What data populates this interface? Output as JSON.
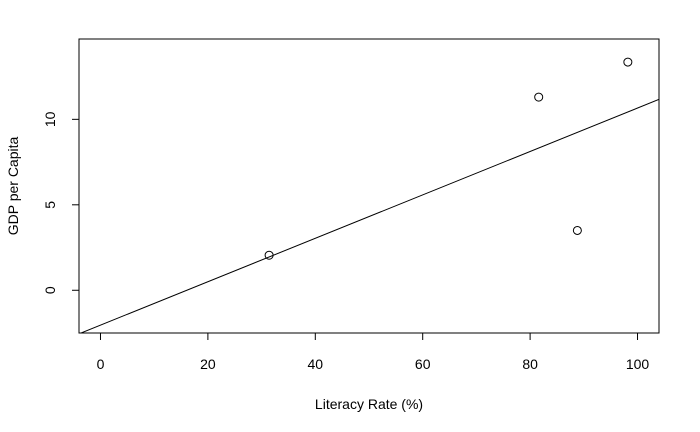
{
  "chart_data": {
    "type": "scatter",
    "title": "",
    "xlabel": "Literacy Rate (%)",
    "ylabel": "GDP per Capita",
    "xlim": [
      -4,
      104
    ],
    "ylim": [
      -2.5,
      14.7
    ],
    "x_ticks": [
      0,
      20,
      40,
      60,
      80,
      100
    ],
    "y_ticks": [
      0,
      5,
      10
    ],
    "grid": false,
    "legend": "none",
    "points": [
      {
        "x": 31.4,
        "y": 2.05
      },
      {
        "x": 81.6,
        "y": 11.3
      },
      {
        "x": 88.8,
        "y": 3.5
      },
      {
        "x": 98.2,
        "y": 13.35
      }
    ],
    "regression_line": {
      "intercept": -2.04,
      "slope": 0.127
    },
    "colors": {
      "ink": "#000000",
      "background": "#ffffff"
    }
  }
}
